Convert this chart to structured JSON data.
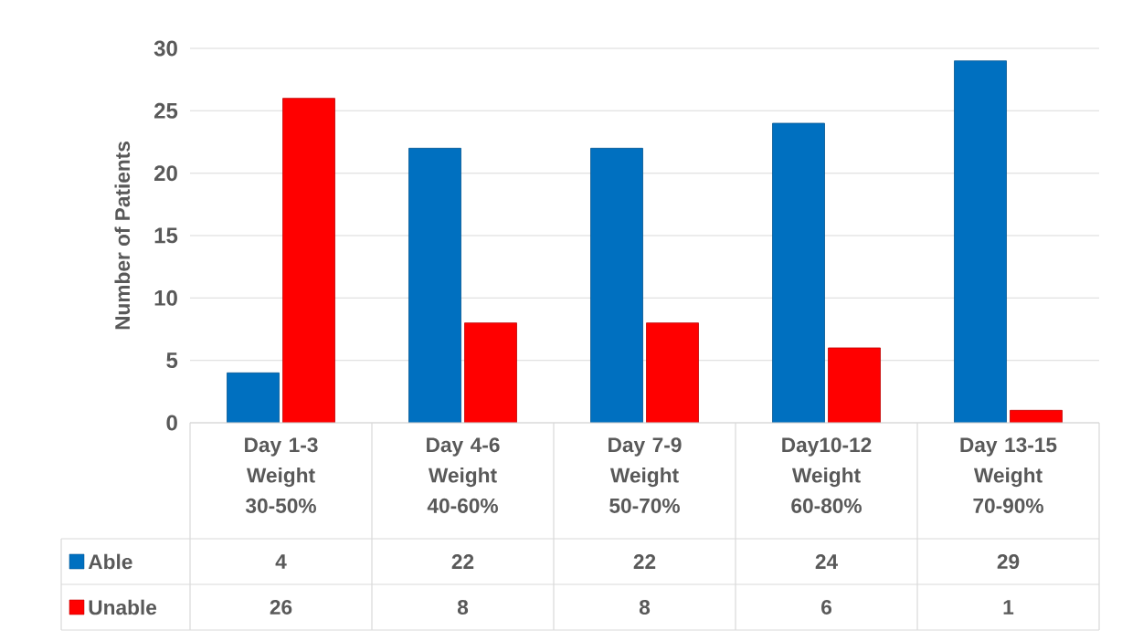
{
  "chart_data": {
    "type": "bar",
    "ylabel": "Number of Patients",
    "categories": [
      "Day 1-3 Weight 30-50%",
      "Day 4-6 Weight 40-60%",
      "Day 7-9 Weight 50-70%",
      "Day10-12 Weight 60-80%",
      "Day 13-15 Weight 70-90%"
    ],
    "series": [
      {
        "name": "Able",
        "color": "#0070c0",
        "values": [
          4,
          22,
          22,
          24,
          29
        ]
      },
      {
        "name": "Unable",
        "color": "#ff0000",
        "values": [
          26,
          8,
          8,
          6,
          1
        ]
      }
    ],
    "ylim": [
      0,
      30
    ],
    "yticks": [
      0,
      5,
      10,
      15,
      20,
      25,
      30
    ],
    "grid": "y",
    "legend": "bottom",
    "data_labels": true
  }
}
